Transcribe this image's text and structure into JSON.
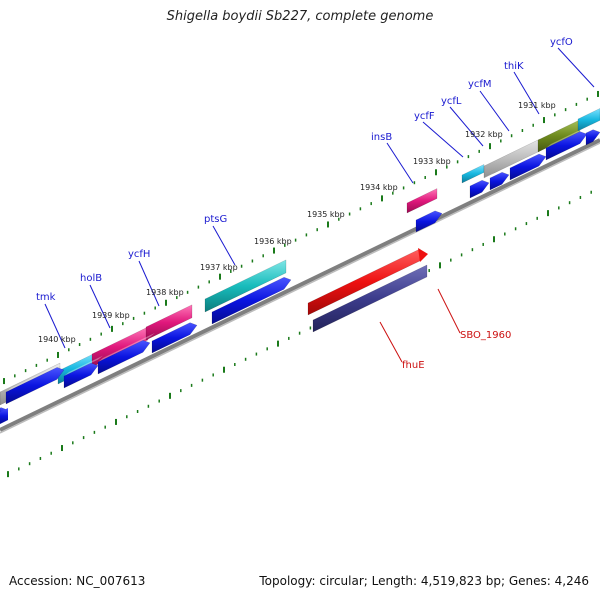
{
  "title": "Shigella boydii Sb227, complete genome",
  "footer": {
    "accession": "Accession: NC_007613",
    "topology": "Topology: circular; Length: 4,519,823 bp; Genes: 4,246"
  },
  "colors": {
    "tick": "#1a7a1a",
    "backbone": "#7f7f7f",
    "cds_blue": "#0a14e0",
    "gene_red": "#ee1111",
    "gene_navy": "#3c3c8c",
    "feature_grey": "#bdbdbd",
    "feature_cyan": "#18b8e0",
    "feature_magenta": "#e0187c",
    "feature_teal": "#18bcbc",
    "feature_olive": "#6e8a1e",
    "label_blue": "#1a1ad0",
    "label_red": "#cc1010"
  },
  "kbp_labels": [
    "1931 kbp",
    "1932 kbp",
    "1933 kbp",
    "1934 kbp",
    "1935 kbp",
    "1936 kbp",
    "1937 kbp",
    "1938 kbp",
    "1939 kbp",
    "1940 kbp"
  ],
  "gene_labels_top": [
    "ycfO",
    "thiK",
    "ycfM",
    "ycfL",
    "ycfF",
    "insB",
    "ptsG",
    "ycfH",
    "holB",
    "tmk"
  ],
  "gene_labels_bottom": [
    "SBO_1960",
    "fhuE"
  ]
}
